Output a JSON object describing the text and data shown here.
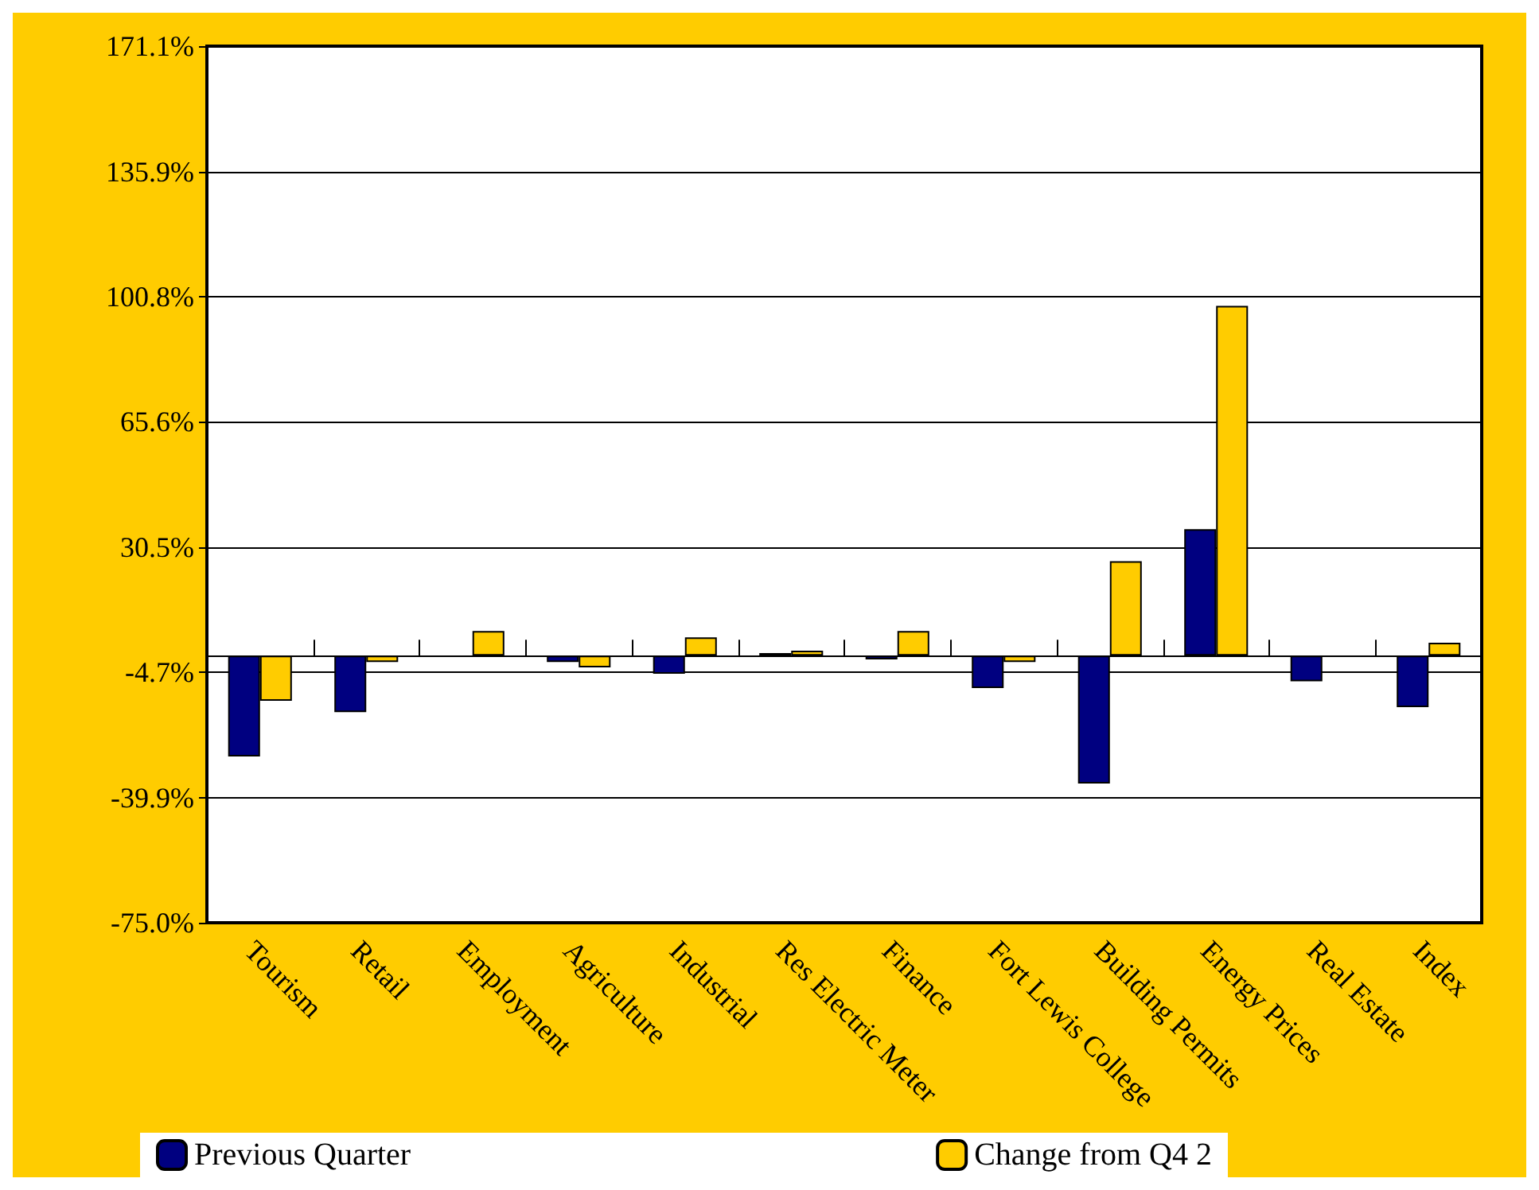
{
  "chart_data": {
    "type": "bar",
    "categories": [
      "Tourism",
      "Retail",
      "Employment",
      "Agriculture",
      "Industrial",
      "Res Electric Meter",
      "Finance",
      "Fort Lewis College",
      "Building Permits",
      "Energy Prices",
      "Real Estate",
      "Index"
    ],
    "series": [
      {
        "name": "Previous Quarter",
        "color": "#000080",
        "values": [
          -28.3,
          -15.9,
          null,
          -1.8,
          -5.1,
          0.7,
          -1.1,
          -9.1,
          -35.9,
          35.5,
          -7.2,
          -14.5
        ]
      },
      {
        "name": "Change from Q4 2",
        "color": "#ffcc00",
        "values": [
          -12.7,
          -1.8,
          6.9,
          -3.3,
          5.1,
          1.4,
          6.9,
          -1.8,
          26.5,
          98.2,
          null,
          3.6
        ]
      }
    ],
    "ylim": [
      -75.0,
      171.1
    ],
    "yticks": [
      {
        "value": -75.0,
        "label": "-75.0%"
      },
      {
        "value": -39.9,
        "label": "-39.9%"
      },
      {
        "value": -4.7,
        "label": "-4.7%"
      },
      {
        "value": 30.5,
        "label": "30.5%"
      },
      {
        "value": 65.6,
        "label": "65.6%"
      },
      {
        "value": 100.8,
        "label": "100.8%"
      },
      {
        "value": 135.9,
        "label": "135.9%"
      },
      {
        "value": 171.1,
        "label": "171.1%"
      }
    ],
    "grid": "y",
    "legend": "bottom"
  }
}
